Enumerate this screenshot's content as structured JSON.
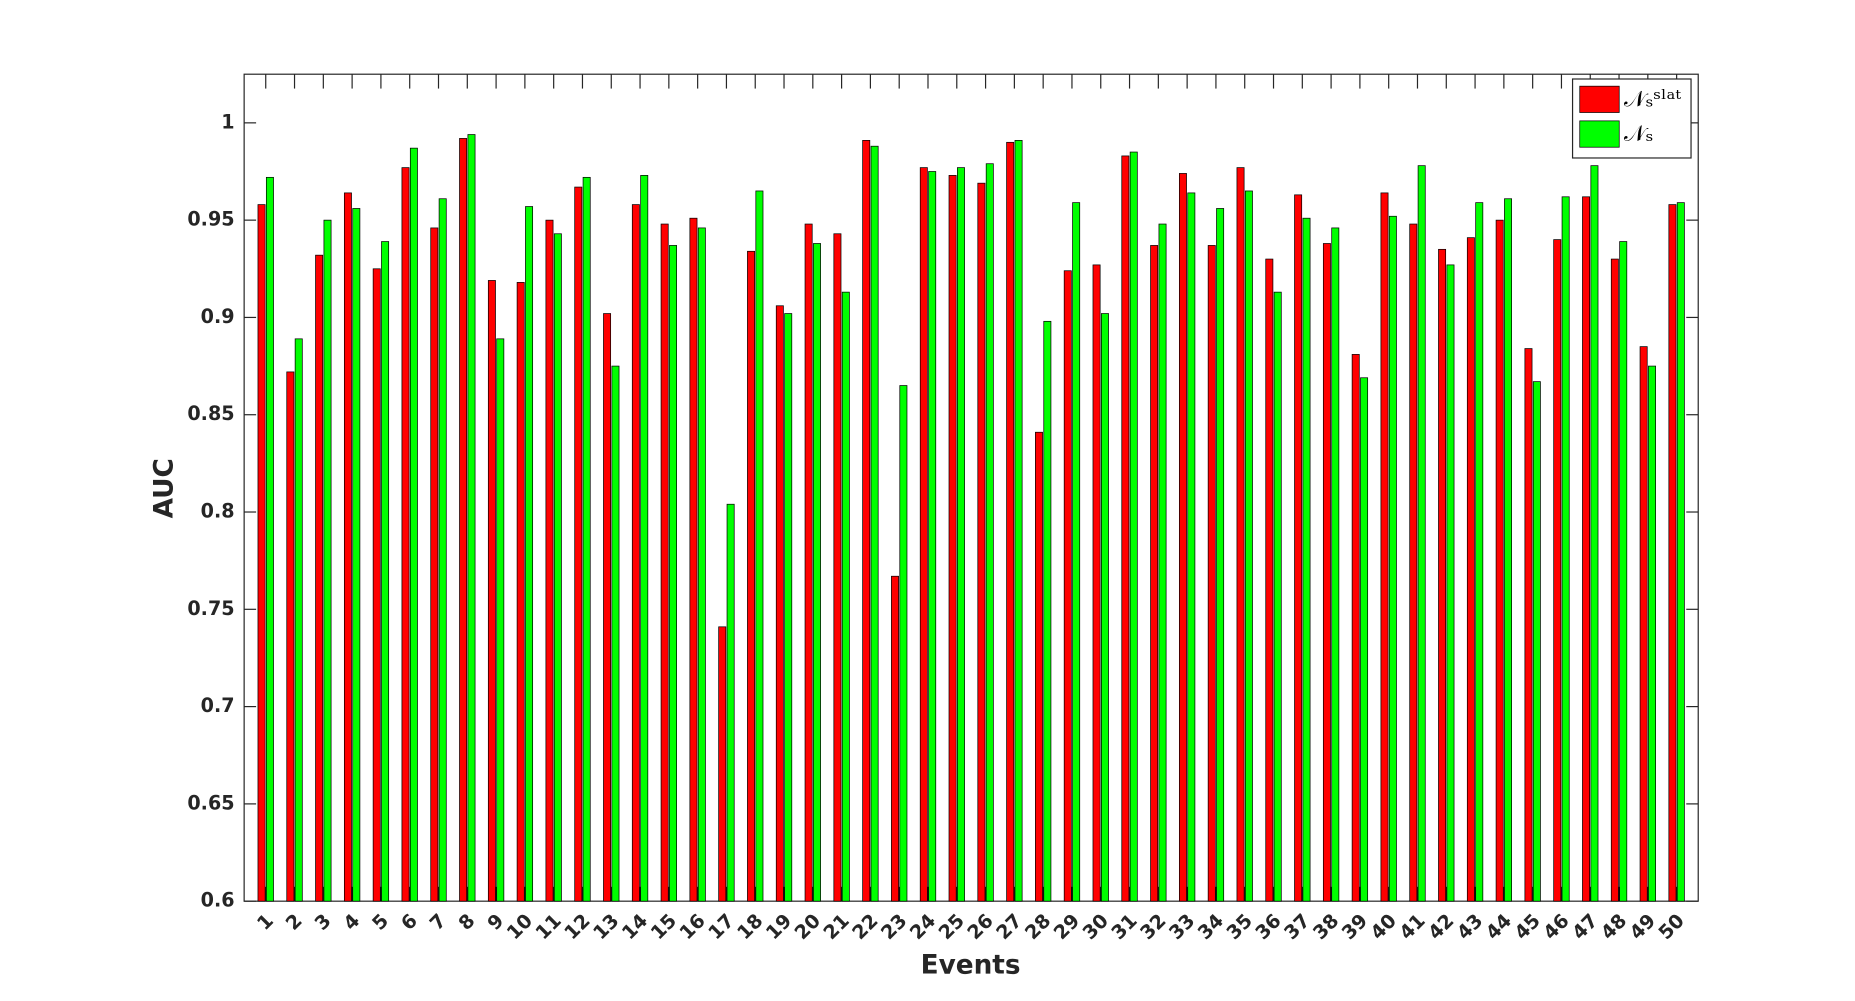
{
  "chart_data": {
    "type": "bar",
    "xlabel": "Events",
    "ylabel": "AUC",
    "categories": [
      "1",
      "2",
      "3",
      "4",
      "5",
      "6",
      "7",
      "8",
      "9",
      "10",
      "11",
      "12",
      "13",
      "14",
      "15",
      "16",
      "17",
      "18",
      "19",
      "20",
      "21",
      "22",
      "23",
      "24",
      "25",
      "26",
      "27",
      "28",
      "29",
      "30",
      "31",
      "32",
      "33",
      "34",
      "35",
      "36",
      "37",
      "38",
      "39",
      "40",
      "41",
      "42",
      "43",
      "44",
      "45",
      "46",
      "47",
      "48",
      "49",
      "50"
    ],
    "series": [
      {
        "name": "𝒩ₛˢˡᵃᵗ",
        "color": "#ff0000",
        "values": [
          0.958,
          0.872,
          0.932,
          0.964,
          0.925,
          0.977,
          0.946,
          0.992,
          0.919,
          0.918,
          0.95,
          0.967,
          0.902,
          0.958,
          0.948,
          0.951,
          0.741,
          0.934,
          0.906,
          0.948,
          0.943,
          0.991,
          0.767,
          0.977,
          0.973,
          0.969,
          0.99,
          0.841,
          0.924,
          0.927,
          0.983,
          0.937,
          0.974,
          0.937,
          0.977,
          0.93,
          0.963,
          0.938,
          0.881,
          0.964,
          0.948,
          0.935,
          0.941,
          0.95,
          0.884,
          0.94,
          0.962,
          0.93,
          0.885,
          0.958
        ]
      },
      {
        "name": "𝒩ₛ",
        "color": "#00ff00",
        "values": [
          0.972,
          0.889,
          0.95,
          0.956,
          0.939,
          0.987,
          0.961,
          0.994,
          0.889,
          0.957,
          0.943,
          0.972,
          0.875,
          0.973,
          0.937,
          0.946,
          0.804,
          0.965,
          0.902,
          0.938,
          0.913,
          0.988,
          0.865,
          0.975,
          0.977,
          0.979,
          0.991,
          0.898,
          0.959,
          0.902,
          0.985,
          0.948,
          0.964,
          0.956,
          0.965,
          0.913,
          0.951,
          0.946,
          0.869,
          0.952,
          0.978,
          0.927,
          0.959,
          0.961,
          0.867,
          0.962,
          0.978,
          0.939,
          0.875,
          0.959
        ]
      }
    ],
    "ylim": [
      0.6,
      1.025
    ],
    "yticks": [
      0.6,
      0.65,
      0.7,
      0.75,
      0.8,
      0.85,
      0.9,
      0.95,
      1
    ],
    "legend": "upper right"
  }
}
